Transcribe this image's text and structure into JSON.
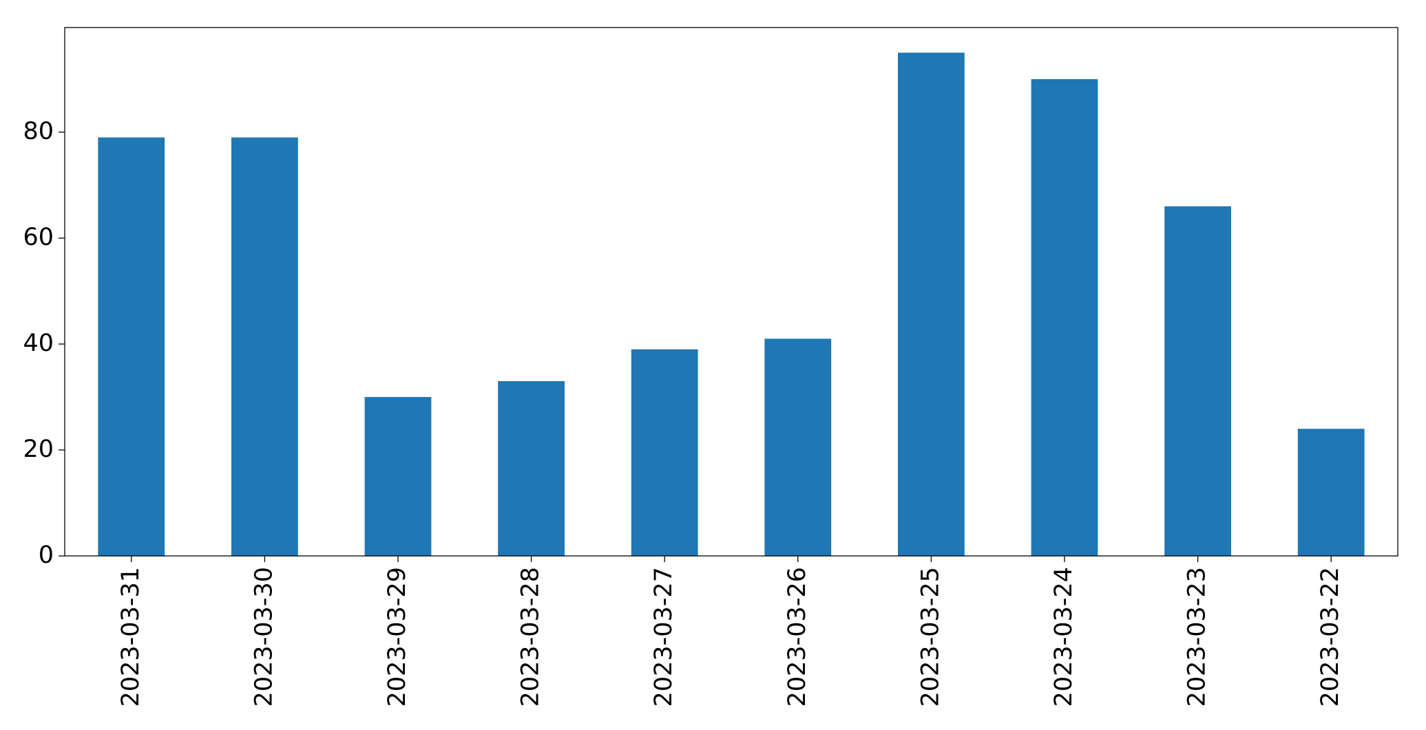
{
  "chart_data": {
    "type": "bar",
    "categories": [
      "2023-03-31",
      "2023-03-30",
      "2023-03-29",
      "2023-03-28",
      "2023-03-27",
      "2023-03-26",
      "2023-03-25",
      "2023-03-24",
      "2023-03-23",
      "2023-03-22"
    ],
    "values": [
      79,
      79,
      30,
      33,
      39,
      41,
      95,
      90,
      66,
      24
    ],
    "color": "#1f77b4",
    "ylim": [
      0,
      99.75
    ],
    "yticks": [
      0,
      20,
      40,
      60,
      80
    ],
    "grid": false
  }
}
